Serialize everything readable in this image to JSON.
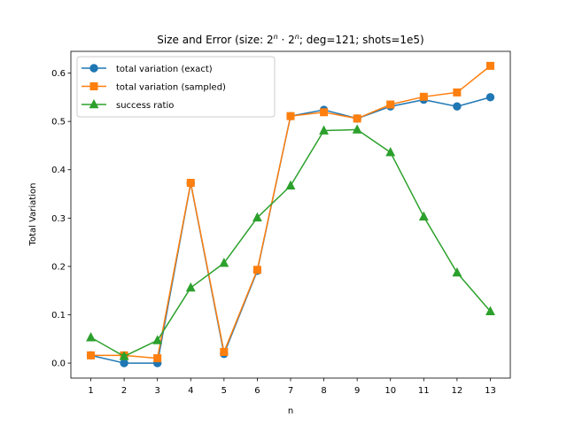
{
  "chart_data": {
    "type": "line",
    "title_main": "Size and Error (size: ",
    "title_base": "2",
    "title_exp": "n",
    "title_dot": " · ",
    "title_base2": "2",
    "title_exp2": "n",
    "title_rest": "; deg=121; shots=1e5)",
    "xlabel": "n",
    "ylabel": "Total Variation",
    "x": [
      1,
      2,
      3,
      4,
      5,
      6,
      7,
      8,
      9,
      10,
      11,
      12,
      13
    ],
    "xlim": [
      0.4,
      13.6
    ],
    "ylim": [
      -0.031,
      0.645
    ],
    "yticks": [
      0.0,
      0.1,
      0.2,
      0.3,
      0.4,
      0.5,
      0.6
    ],
    "ytick_labels": [
      "0.0",
      "0.1",
      "0.2",
      "0.3",
      "0.4",
      "0.5",
      "0.6"
    ],
    "xtick_labels": [
      "1",
      "2",
      "3",
      "4",
      "5",
      "6",
      "7",
      "8",
      "9",
      "10",
      "11",
      "12",
      "13"
    ],
    "grid": false,
    "legend_position": "top-left",
    "series": [
      {
        "name": "total variation (exact)",
        "color": "#1f77b4",
        "marker": "circle",
        "values": [
          0.016,
          0.0,
          0.0,
          0.372,
          0.019,
          0.191,
          0.511,
          0.524,
          0.506,
          0.531,
          0.545,
          0.531,
          0.55
        ]
      },
      {
        "name": "total variation (sampled)",
        "color": "#ff7f0e",
        "marker": "square",
        "values": [
          0.016,
          0.016,
          0.01,
          0.373,
          0.023,
          0.193,
          0.511,
          0.519,
          0.506,
          0.535,
          0.551,
          0.56,
          0.615
        ]
      },
      {
        "name": "success ratio",
        "color": "#2ca02c",
        "marker": "triangle",
        "values": [
          0.053,
          0.014,
          0.047,
          0.156,
          0.207,
          0.301,
          0.367,
          0.481,
          0.483,
          0.436,
          0.303,
          0.187,
          0.107
        ]
      }
    ]
  }
}
